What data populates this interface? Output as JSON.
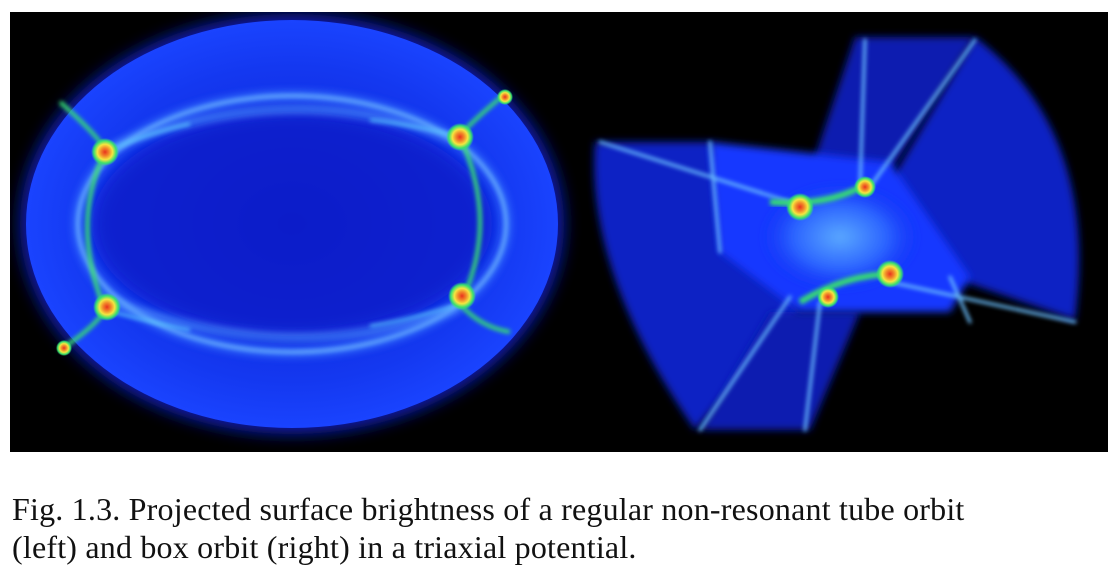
{
  "figure": {
    "colors": {
      "background": "#000000",
      "body_dark": "#0a1fd8",
      "body_mid": "#1e46ff",
      "glow": "#49a6ff",
      "caustic_green": "#39e070",
      "caustic_yellow": "#f4e640",
      "caustic_red": "#e8321e"
    },
    "panels": [
      "tube-orbit",
      "box-orbit"
    ]
  },
  "caption": {
    "line1": "Fig. 1.3. Projected surface brightness of a regular non-resonant tube orbit",
    "line2": "(left) and box orbit (right) in a triaxial potential."
  }
}
